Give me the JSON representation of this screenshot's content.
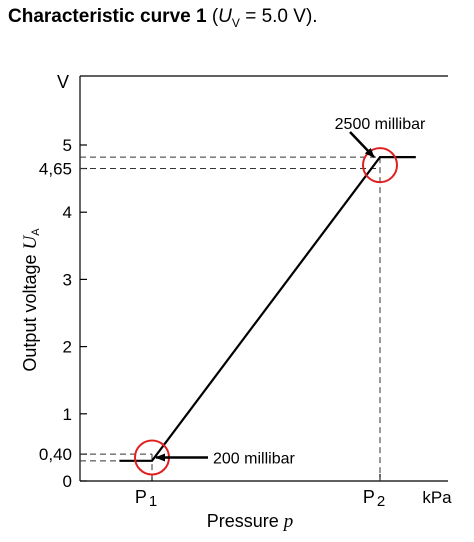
{
  "title": {
    "bold": "Characteristic curve 1",
    "paren_open": " (",
    "var_main": "U",
    "var_sub": "V",
    "value": " = 5.0 V)."
  },
  "chart_data": {
    "type": "line",
    "title": "Characteristic curve 1 (UV = 5.0 V).",
    "xlabel": "Pressure",
    "xlabel_var": "p",
    "ylabel": "Output voltage",
    "ylabel_var": "U",
    "ylabel_sub": "A",
    "y_unit": "V",
    "x_unit": "kPa",
    "ylim": [
      0,
      5.5
    ],
    "xlim": [
      0,
      5.05
    ],
    "grid": false,
    "x_ticks": [
      {
        "value": 1.0,
        "main": "P",
        "sub": "1"
      },
      {
        "value": 4.5,
        "main": "P",
        "sub": "2"
      }
    ],
    "y_ticks": [
      {
        "value": 0,
        "label": "0"
      },
      {
        "value": 0.4,
        "label": "0,40"
      },
      {
        "value": 1,
        "label": "1"
      },
      {
        "value": 2,
        "label": "2"
      },
      {
        "value": 3,
        "label": "3"
      },
      {
        "value": 4,
        "label": "4"
      },
      {
        "value": 4.65,
        "label": "4,65"
      },
      {
        "value": 5,
        "label": "5"
      }
    ],
    "series": [
      {
        "x": [
          0.5,
          1.0,
          4.5,
          5.05
        ],
        "y": [
          0.3,
          0.3,
          4.82,
          4.82
        ]
      }
    ],
    "dashed_refs": [
      {
        "y": 0.4,
        "x_end": 1.0
      },
      {
        "y": 0.3,
        "x_end": 1.0
      },
      {
        "y": 4.82,
        "x_end": 4.5
      },
      {
        "y": 4.65,
        "x_end": 4.5
      },
      {
        "x": 1.0,
        "y_end": 0.4
      },
      {
        "x": 4.5,
        "y_end": 4.82
      }
    ],
    "highlights": [
      {
        "x": 1.0,
        "y": 0.35,
        "label": "200 millibar",
        "color": "#e02020"
      },
      {
        "x": 4.5,
        "y": 4.7,
        "label": "2500 millibar",
        "color": "#e02020"
      }
    ]
  }
}
